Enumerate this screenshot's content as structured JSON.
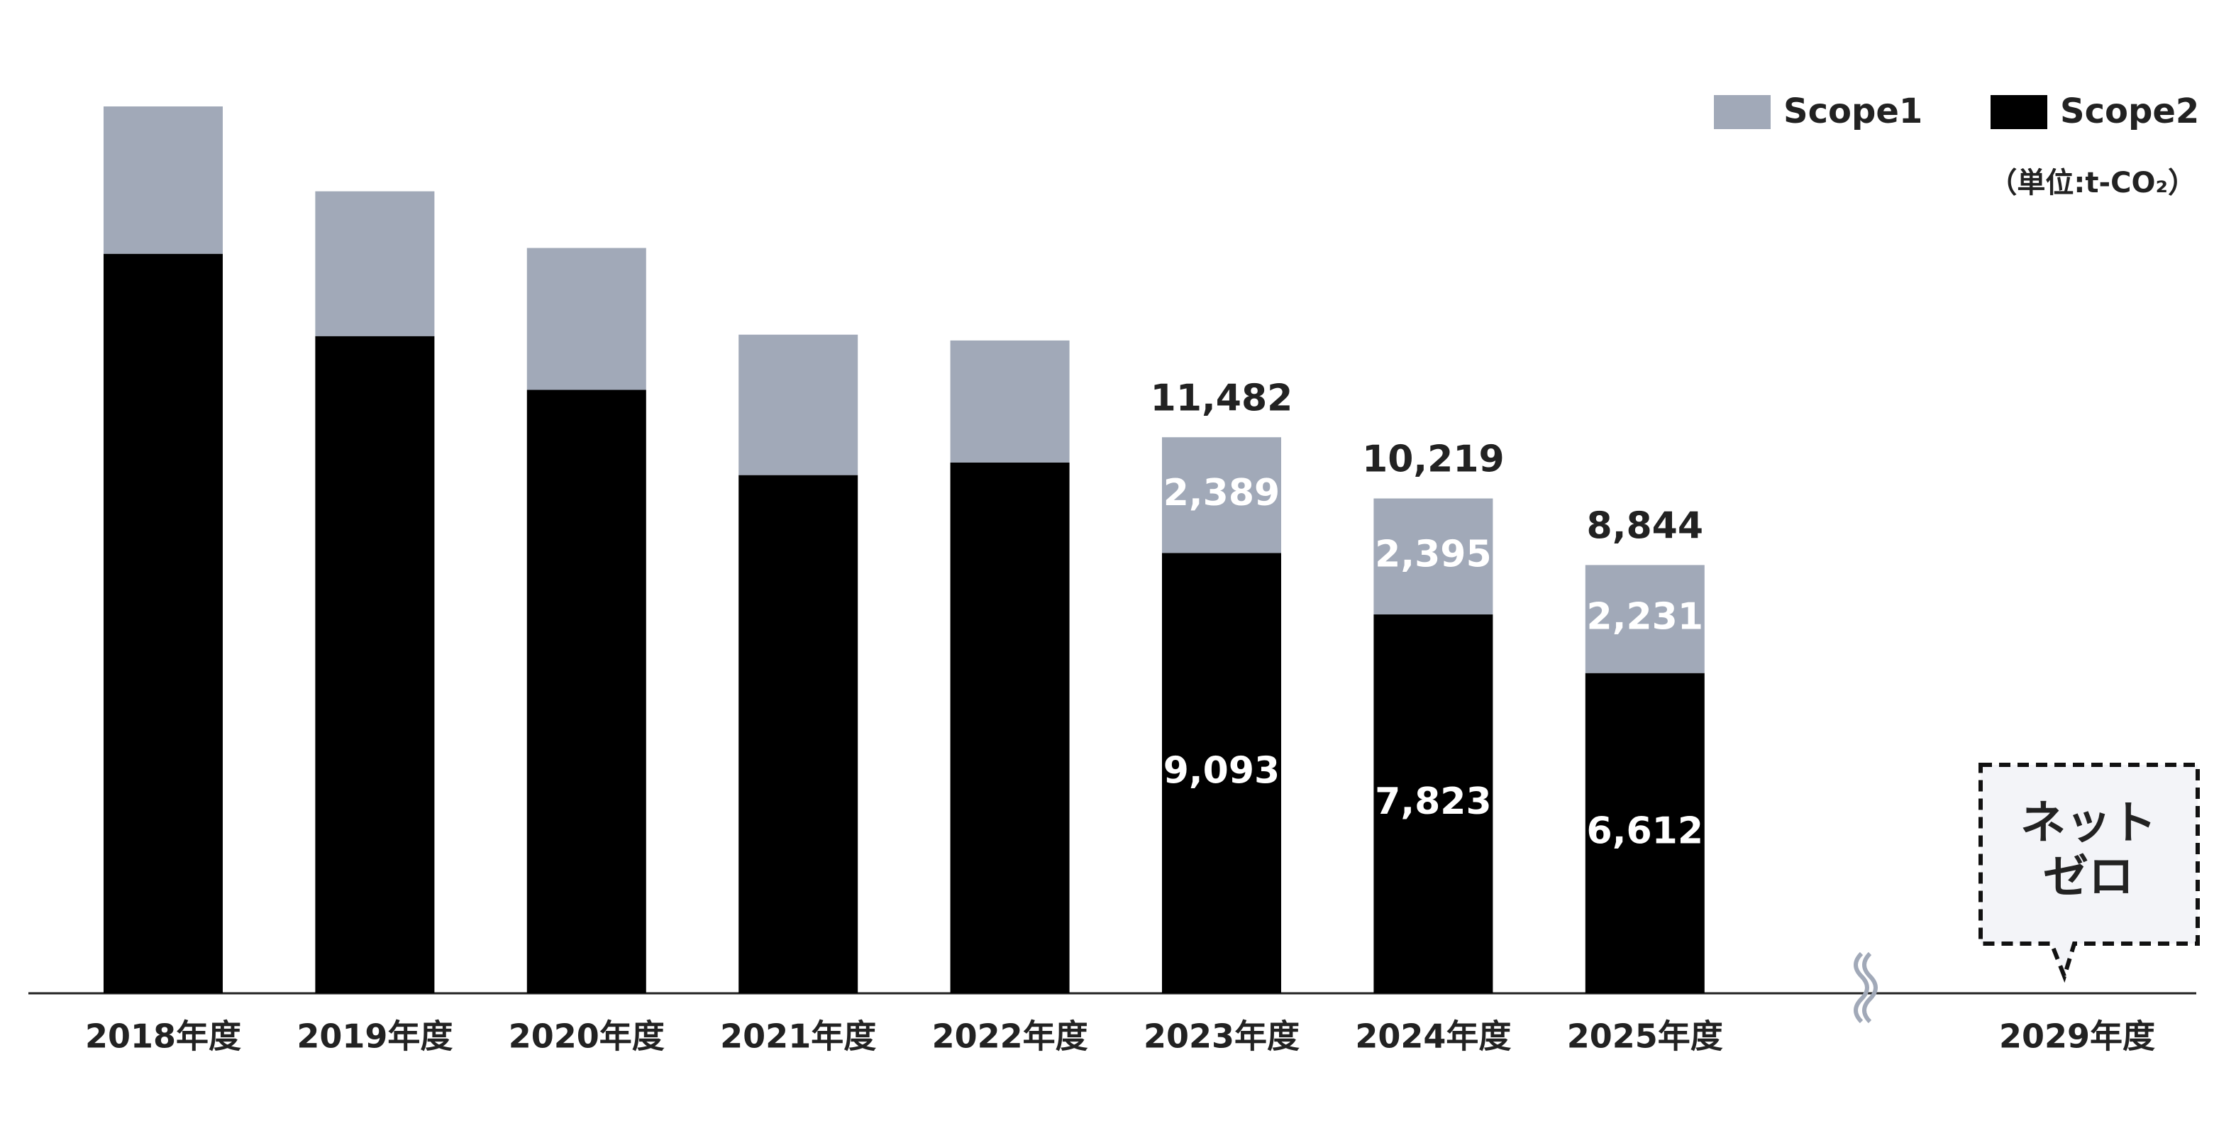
{
  "chart_data": {
    "type": "stacked_bar",
    "categories": [
      "2018年度",
      "2019年度",
      "2020年度",
      "2021年度",
      "2022年度",
      "2023年度",
      "2024年度",
      "2025年度",
      "2029年度"
    ],
    "series": [
      {
        "name": "Scope1",
        "color": "#a1a9b8",
        "values": [
          3043,
          2990,
          2930,
          2900,
          2520,
          2389,
          2395,
          2231,
          null
        ],
        "value_labels": [
          null,
          null,
          null,
          null,
          null,
          "2,389",
          "2,395",
          "2,231",
          null
        ]
      },
      {
        "name": "Scope2",
        "color": "#000000",
        "values": [
          15270,
          13570,
          12460,
          10700,
          10960,
          9093,
          7823,
          6612,
          null
        ],
        "value_labels": [
          null,
          null,
          null,
          null,
          null,
          "9,093",
          "7,823",
          "6,612",
          null
        ]
      }
    ],
    "totals": {
      "values": [
        null,
        null,
        null,
        null,
        null,
        11482,
        10219,
        8844,
        null
      ],
      "value_labels": [
        null,
        null,
        null,
        null,
        null,
        "11,482",
        "10,219",
        "8,844",
        null
      ]
    },
    "unit_label": "（単位:t-CO₂）",
    "callout": [
      "ネット",
      "ゼロ"
    ],
    "legend": "top-right"
  }
}
